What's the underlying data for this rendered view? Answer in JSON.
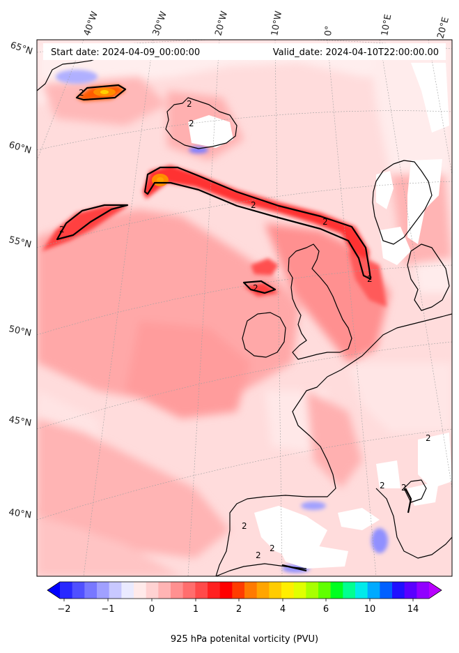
{
  "header": {
    "start_date": "Start date: 2024-04-09_00:00:00",
    "valid_date": "Valid_date: 2024-04-10T22:00:00.00"
  },
  "map": {
    "projection": "lambert-conformal",
    "land_outline_color": "#000000",
    "missing_data_color": "#ffffff",
    "lon_labels": [
      "40°W",
      "30°W",
      "20°W",
      "10°W",
      "0°",
      "10°E",
      "20°E"
    ],
    "lat_labels": [
      "65°N",
      "60°N",
      "55°N",
      "50°N",
      "45°N",
      "40°N"
    ],
    "contour_labels": [
      "2",
      "2",
      "2",
      "2",
      "2",
      "2",
      "2",
      "2",
      "2",
      "2",
      "2",
      "2",
      "2",
      "2"
    ]
  },
  "colorbar": {
    "title": "925 hPa potenital vorticity (PVU)",
    "tick_labels": [
      "−2",
      "−1",
      "0",
      "1",
      "2",
      "4",
      "6",
      "10",
      "14"
    ],
    "colors": [
      "#0000ff",
      "#2828ff",
      "#5050ff",
      "#7878ff",
      "#a0a0ff",
      "#c8c8ff",
      "#eaeaff",
      "#ffeaea",
      "#ffd2d2",
      "#ffb4b4",
      "#ff9090",
      "#ff6e6e",
      "#ff4a4a",
      "#ff2020",
      "#ff0000",
      "#ff3c00",
      "#ff7a00",
      "#ffa500",
      "#ffcc00",
      "#ffee00",
      "#e0ff00",
      "#a8ff00",
      "#60ff00",
      "#00ff20",
      "#00ff90",
      "#00eaea",
      "#00aaff",
      "#0060ff",
      "#2010ff",
      "#5a00ff",
      "#9000ff",
      "#b800ff"
    ]
  }
}
